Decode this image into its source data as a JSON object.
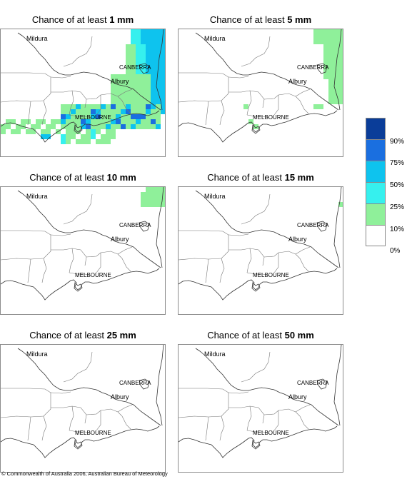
{
  "panels": [
    {
      "prefix": "Chance of at least ",
      "amount": "1 mm"
    },
    {
      "prefix": "Chance of at least ",
      "amount": "5 mm"
    },
    {
      "prefix": "Chance of at least ",
      "amount": "10 mm"
    },
    {
      "prefix": "Chance of at least ",
      "amount": "15 mm"
    },
    {
      "prefix": "Chance of at least ",
      "amount": "25 mm"
    },
    {
      "prefix": "Chance of at least ",
      "amount": "50 mm"
    }
  ],
  "places": {
    "mildura": "Mildura",
    "canberra": "CANBERRA",
    "albury": "Albury",
    "melbourne": "MELBOURNE"
  },
  "legend": {
    "labels": [
      "90%",
      "75%",
      "50%",
      "25%",
      "10%",
      "0%"
    ],
    "colors": [
      "#0a3d99",
      "#1a6fe0",
      "#0ec3ee",
      "#36f0ee",
      "#8ff09a",
      "#ffffff"
    ]
  },
  "footer": "© Commonwealth of Australia 2006, Australian Bureau of Meteorology"
}
